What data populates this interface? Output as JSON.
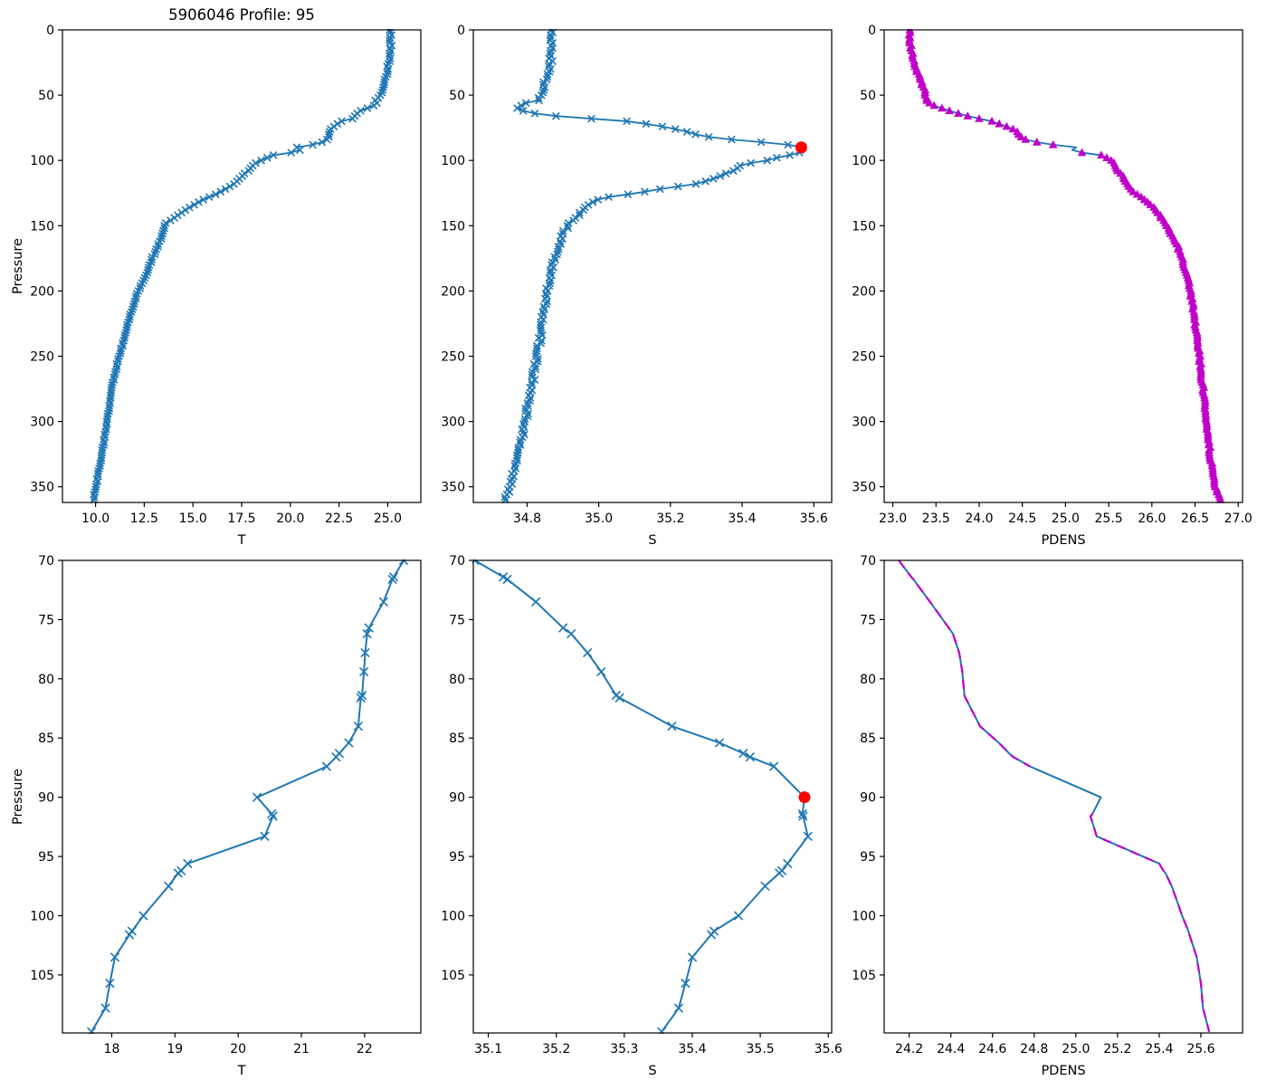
{
  "figure": {
    "title": "5906046 Profile: 95",
    "pressure_axis_label": "Pressure"
  },
  "colors": {
    "profile_blue": "#1f77b4",
    "pdens_magenta": "#c000c8",
    "flag_red": "#ff0000",
    "axis_black": "#000000",
    "background": "#ffffff"
  },
  "chart_data": {
    "type": "line",
    "title": "5906046 Profile: 95",
    "ylabel": "Pressure",
    "grid": false,
    "legend": "none",
    "flagged_point": {
      "pressure": 90,
      "S": 35.565
    },
    "panels": [
      {
        "id": "T-full",
        "row": 0,
        "col": 0,
        "series": "T",
        "mode": "full",
        "marker": "x",
        "title": "5906046 Profile: 95",
        "xlabel": "T",
        "ylabel": "Pressure",
        "xlim": [
          8.3,
          26.7
        ],
        "ylim": [
          0,
          362
        ],
        "xticks": [
          10.0,
          12.5,
          15.0,
          17.5,
          20.0,
          22.5,
          25.0
        ],
        "xtick_decimals": 1,
        "yticks": [
          0,
          50,
          100,
          150,
          200,
          250,
          300,
          350
        ]
      },
      {
        "id": "S-full",
        "row": 0,
        "col": 1,
        "series": "S",
        "mode": "full",
        "marker": "x",
        "xlabel": "S",
        "xlim": [
          34.65,
          35.65
        ],
        "ylim": [
          0,
          362
        ],
        "xticks": [
          34.8,
          35.0,
          35.2,
          35.4,
          35.6
        ],
        "xtick_decimals": 1,
        "yticks": [
          0,
          50,
          100,
          150,
          200,
          250,
          300,
          350
        ],
        "flag": true
      },
      {
        "id": "PDENS-full",
        "row": 0,
        "col": 2,
        "series": "PDENS",
        "mode": "full",
        "marker": "triangle",
        "xlabel": "PDENS",
        "xlim": [
          22.9,
          27.05
        ],
        "ylim": [
          0,
          362
        ],
        "xticks": [
          23.0,
          23.5,
          24.0,
          24.5,
          25.0,
          25.5,
          26.0,
          26.5,
          27.0
        ],
        "xtick_decimals": 1,
        "yticks": [
          0,
          50,
          100,
          150,
          200,
          250,
          300,
          350
        ],
        "marker_gap_pressure": [
          88.5,
          92.5
        ]
      },
      {
        "id": "T-zoom",
        "row": 1,
        "col": 0,
        "series": "T",
        "mode": "zoom",
        "marker": "x",
        "xlabel": "T",
        "ylabel": "Pressure",
        "xlim": [
          17.22,
          22.89
        ],
        "ylim": [
          70,
          109.9
        ],
        "xticks": [
          18,
          19,
          20,
          21,
          22
        ],
        "xtick_decimals": 0,
        "yticks": [
          70,
          75,
          80,
          85,
          90,
          95,
          100,
          105
        ]
      },
      {
        "id": "S-zoom",
        "row": 1,
        "col": 1,
        "series": "S",
        "mode": "zoom",
        "marker": "x",
        "xlabel": "S",
        "xlim": [
          35.078,
          35.605
        ],
        "ylim": [
          70,
          109.9
        ],
        "xticks": [
          35.1,
          35.2,
          35.3,
          35.4,
          35.5,
          35.6
        ],
        "xtick_decimals": 1,
        "yticks": [
          70,
          75,
          80,
          85,
          90,
          95,
          100,
          105
        ],
        "flag": true
      },
      {
        "id": "PDENS-zoom",
        "row": 1,
        "col": 2,
        "series": "PDENS",
        "mode": "zoom",
        "marker": "none",
        "xlabel": "PDENS",
        "xlim": [
          24.08,
          25.8
        ],
        "ylim": [
          70,
          109.9
        ],
        "xticks": [
          24.2,
          24.4,
          24.6,
          24.8,
          25.0,
          25.2,
          25.4,
          25.6
        ],
        "xtick_decimals": 1,
        "yticks": [
          70,
          75,
          80,
          85,
          90,
          95,
          100,
          105
        ],
        "dashed_overlay": true,
        "dash_gap_pressure": [
          87.5,
          91.3
        ]
      }
    ],
    "zoom_profile": {
      "pressure": [
        70.0,
        71.4,
        71.6,
        73.5,
        75.7,
        76.2,
        77.8,
        79.4,
        81.4,
        81.6,
        84.0,
        85.4,
        86.3,
        86.6,
        87.4,
        90.0,
        91.4,
        91.6,
        93.3,
        95.6,
        96.2,
        96.4,
        97.5,
        100.0,
        101.3,
        101.6,
        103.5,
        105.7,
        107.8,
        109.8
      ],
      "T": [
        22.62,
        22.46,
        22.44,
        22.3,
        22.07,
        22.04,
        22.01,
        21.99,
        21.96,
        21.94,
        21.9,
        21.75,
        21.6,
        21.55,
        21.4,
        20.3,
        20.53,
        20.55,
        20.42,
        19.2,
        19.1,
        19.05,
        18.9,
        18.5,
        18.32,
        18.28,
        18.05,
        17.97,
        17.9,
        17.68
      ],
      "S": [
        35.08,
        35.122,
        35.128,
        35.17,
        35.21,
        35.222,
        35.246,
        35.266,
        35.288,
        35.293,
        35.37,
        35.44,
        35.475,
        35.485,
        35.52,
        35.565,
        35.562,
        35.563,
        35.57,
        35.54,
        35.532,
        35.528,
        35.507,
        35.468,
        35.432,
        35.428,
        35.4,
        35.39,
        35.38,
        35.355
      ],
      "PDENS": [
        24.15,
        24.21,
        24.22,
        24.3,
        24.39,
        24.41,
        24.44,
        24.455,
        24.465,
        24.47,
        24.54,
        24.63,
        24.68,
        24.7,
        24.78,
        25.12,
        25.08,
        25.07,
        25.1,
        25.4,
        25.42,
        25.43,
        25.46,
        25.51,
        25.54,
        25.545,
        25.58,
        25.6,
        25.61,
        25.64
      ]
    },
    "full_profile_anchors": {
      "T": [
        [
          0,
          25.12
        ],
        [
          4,
          25.16
        ],
        [
          8,
          25.08
        ],
        [
          12,
          25.18
        ],
        [
          16,
          25.12
        ],
        [
          20,
          25.08
        ],
        [
          24,
          25.12
        ],
        [
          28,
          25.0
        ],
        [
          32,
          25.02
        ],
        [
          36,
          24.9
        ],
        [
          40,
          24.84
        ],
        [
          44,
          24.8
        ],
        [
          48,
          24.68
        ],
        [
          52,
          24.52
        ],
        [
          54,
          24.38
        ],
        [
          56,
          24.46
        ],
        [
          58,
          24.28
        ],
        [
          60,
          23.95
        ],
        [
          62,
          23.6
        ],
        [
          64,
          23.42
        ],
        [
          66,
          23.3
        ],
        [
          68,
          23.2
        ],
        [
          70,
          22.62
        ],
        [
          73.5,
          22.3
        ],
        [
          76,
          22.05
        ],
        [
          80,
          22.0
        ],
        [
          84,
          21.9
        ],
        [
          86.5,
          21.58
        ],
        [
          87.4,
          21.4
        ],
        [
          90,
          20.35
        ],
        [
          91.5,
          20.54
        ],
        [
          93.3,
          20.42
        ],
        [
          95.6,
          19.2
        ],
        [
          97.5,
          18.9
        ],
        [
          100,
          18.5
        ],
        [
          103.5,
          18.05
        ],
        [
          107.8,
          17.9
        ],
        [
          110,
          17.66
        ],
        [
          114,
          17.38
        ],
        [
          118,
          17.1
        ],
        [
          122,
          16.68
        ],
        [
          126,
          16.18
        ],
        [
          130,
          15.52
        ],
        [
          134,
          15.05
        ],
        [
          138,
          14.6
        ],
        [
          142,
          14.2
        ],
        [
          146,
          13.85
        ],
        [
          148,
          13.62
        ],
        [
          152,
          13.5
        ],
        [
          160,
          13.35
        ],
        [
          168,
          13.12
        ],
        [
          176,
          12.88
        ],
        [
          184,
          12.68
        ],
        [
          192,
          12.46
        ],
        [
          200,
          12.2
        ],
        [
          210,
          11.97
        ],
        [
          220,
          11.75
        ],
        [
          232,
          11.55
        ],
        [
          244,
          11.33
        ],
        [
          256,
          11.1
        ],
        [
          268,
          10.91
        ],
        [
          280,
          10.79
        ],
        [
          292,
          10.67
        ],
        [
          304,
          10.54
        ],
        [
          316,
          10.42
        ],
        [
          328,
          10.29
        ],
        [
          340,
          10.14
        ],
        [
          352,
          10.0
        ],
        [
          360,
          9.9
        ]
      ],
      "S": [
        [
          0,
          34.87
        ],
        [
          8,
          34.87
        ],
        [
          16,
          34.868
        ],
        [
          24,
          34.866
        ],
        [
          30,
          34.864
        ],
        [
          34,
          34.858
        ],
        [
          38,
          34.852
        ],
        [
          44,
          34.846
        ],
        [
          50,
          34.84
        ],
        [
          54,
          34.833
        ],
        [
          56,
          34.8
        ],
        [
          58,
          34.78
        ],
        [
          60,
          34.776
        ],
        [
          62,
          34.79
        ],
        [
          64,
          34.82
        ],
        [
          66,
          34.88
        ],
        [
          68,
          34.98
        ],
        [
          70,
          35.08
        ],
        [
          73.5,
          35.17
        ],
        [
          77.8,
          35.246
        ],
        [
          81.5,
          35.29
        ],
        [
          84,
          35.37
        ],
        [
          86.5,
          35.475
        ],
        [
          88,
          35.53
        ],
        [
          90,
          35.565
        ],
        [
          91.6,
          35.563
        ],
        [
          93.3,
          35.57
        ],
        [
          95.6,
          35.54
        ],
        [
          97.5,
          35.507
        ],
        [
          100,
          35.468
        ],
        [
          101.5,
          35.43
        ],
        [
          103.5,
          35.4
        ],
        [
          105.7,
          35.39
        ],
        [
          107.8,
          35.38
        ],
        [
          109.8,
          35.355
        ],
        [
          112,
          35.34
        ],
        [
          115,
          35.31
        ],
        [
          118,
          35.27
        ],
        [
          120,
          35.22
        ],
        [
          122,
          35.17
        ],
        [
          124,
          35.13
        ],
        [
          126,
          35.08
        ],
        [
          128,
          35.03
        ],
        [
          130,
          35.0
        ],
        [
          133,
          34.98
        ],
        [
          136,
          34.962
        ],
        [
          140,
          34.95
        ],
        [
          144,
          34.935
        ],
        [
          148,
          34.92
        ],
        [
          152,
          34.91
        ],
        [
          156,
          34.9
        ],
        [
          162,
          34.893
        ],
        [
          168,
          34.885
        ],
        [
          174,
          34.878
        ],
        [
          180,
          34.872
        ],
        [
          188,
          34.866
        ],
        [
          196,
          34.86
        ],
        [
          204,
          34.854
        ],
        [
          212,
          34.85
        ],
        [
          220,
          34.845
        ],
        [
          230,
          34.84
        ],
        [
          240,
          34.834
        ],
        [
          250,
          34.828
        ],
        [
          260,
          34.821
        ],
        [
          270,
          34.815
        ],
        [
          280,
          34.81
        ],
        [
          290,
          34.801
        ],
        [
          300,
          34.795
        ],
        [
          310,
          34.788
        ],
        [
          320,
          34.78
        ],
        [
          330,
          34.772
        ],
        [
          340,
          34.762
        ],
        [
          350,
          34.752
        ],
        [
          360,
          34.74
        ]
      ],
      "PDENS": [
        [
          0,
          23.2
        ],
        [
          5,
          23.19
        ],
        [
          10,
          23.2
        ],
        [
          15,
          23.21
        ],
        [
          20,
          23.23
        ],
        [
          25,
          23.25
        ],
        [
          30,
          23.27
        ],
        [
          35,
          23.3
        ],
        [
          40,
          23.33
        ],
        [
          45,
          23.36
        ],
        [
          50,
          23.38
        ],
        [
          54,
          23.4
        ],
        [
          56,
          23.42
        ],
        [
          58,
          23.48
        ],
        [
          60,
          23.57
        ],
        [
          62,
          23.66
        ],
        [
          64,
          23.76
        ],
        [
          66,
          23.87
        ],
        [
          68,
          24.0
        ],
        [
          70,
          24.15
        ],
        [
          73.5,
          24.3
        ],
        [
          75.7,
          24.39
        ],
        [
          79.4,
          24.46
        ],
        [
          81.5,
          24.47
        ],
        [
          84,
          24.54
        ],
        [
          86.5,
          24.7
        ],
        [
          87.4,
          24.78
        ],
        [
          90,
          25.12
        ],
        [
          91.6,
          25.07
        ],
        [
          93.3,
          25.1
        ],
        [
          95.6,
          25.4
        ],
        [
          97.5,
          25.46
        ],
        [
          100,
          25.53
        ],
        [
          103.5,
          25.58
        ],
        [
          107.8,
          25.6
        ],
        [
          109.8,
          25.64
        ],
        [
          112,
          25.66
        ],
        [
          115,
          25.68
        ],
        [
          118,
          25.71
        ],
        [
          121,
          25.75
        ],
        [
          124,
          25.79
        ],
        [
          127,
          25.85
        ],
        [
          130,
          25.91
        ],
        [
          133,
          25.97
        ],
        [
          136,
          26.02
        ],
        [
          139,
          26.06
        ],
        [
          142,
          26.09
        ],
        [
          146,
          26.13
        ],
        [
          150,
          26.17
        ],
        [
          155,
          26.21
        ],
        [
          160,
          26.25
        ],
        [
          166,
          26.3
        ],
        [
          172,
          26.33
        ],
        [
          180,
          26.37
        ],
        [
          190,
          26.41
        ],
        [
          200,
          26.45
        ],
        [
          210,
          26.47
        ],
        [
          220,
          26.49
        ],
        [
          232,
          26.52
        ],
        [
          244,
          26.54
        ],
        [
          256,
          26.56
        ],
        [
          268,
          26.58
        ],
        [
          280,
          26.6
        ],
        [
          292,
          26.62
        ],
        [
          304,
          26.64
        ],
        [
          316,
          26.66
        ],
        [
          328,
          26.68
        ],
        [
          340,
          26.7
        ],
        [
          350,
          26.73
        ],
        [
          356,
          26.77
        ],
        [
          360,
          26.8
        ]
      ]
    },
    "densify": {
      "step_dbar": 2,
      "jitter": {
        "T": 0.045,
        "S": 0.006,
        "PDENS": 0.013
      },
      "seeds": {
        "T": 101,
        "S": 202,
        "PDENS": 303
      }
    }
  }
}
